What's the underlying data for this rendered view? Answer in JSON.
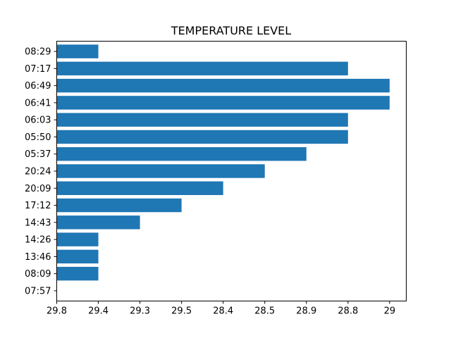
{
  "chart_data": {
    "type": "bar",
    "orientation": "horizontal",
    "title": "TEMPERATURE LEVEL",
    "xlabel": "",
    "ylabel": "",
    "categories": [
      "07:57",
      "08:09",
      "13:46",
      "14:26",
      "14:43",
      "17:12",
      "20:09",
      "20:24",
      "05:37",
      "05:50",
      "06:03",
      "06:41",
      "06:49",
      "07:17",
      "08:29"
    ],
    "values": [
      0,
      1,
      1,
      1,
      2,
      3,
      4,
      5,
      6,
      7,
      7,
      8,
      8,
      7,
      1
    ],
    "x_tick_labels": [
      "29.8",
      "29.4",
      "29.3",
      "29.5",
      "28.4",
      "28.5",
      "28.9",
      "28.8",
      "29"
    ],
    "xlim": [
      0,
      8.4
    ],
    "grid": false,
    "bar_color": "#1f77b4"
  }
}
